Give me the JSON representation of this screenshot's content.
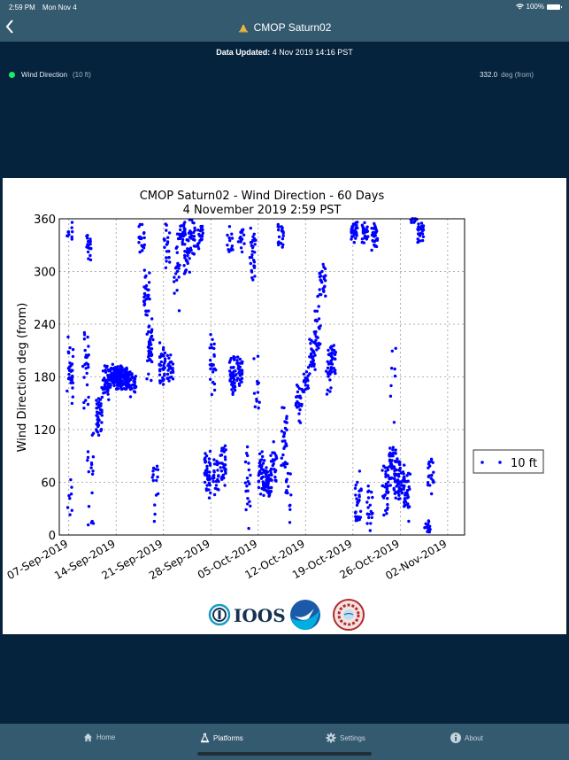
{
  "status_bar": {
    "time": "2:59 PM",
    "date": "Mon Nov 4",
    "battery": "100%"
  },
  "nav": {
    "title": "CMOP Saturn02",
    "back_icon": "chevron-left-icon",
    "title_icon": "buoy-icon"
  },
  "updated": {
    "label": "Data Updated:",
    "value": "4 Nov 2019 14:16 PST"
  },
  "sensor": {
    "name": "Wind Direction",
    "depth": "(10 ft)",
    "value": "332.0",
    "unit": "deg (from)",
    "status_color": "#1ee86a"
  },
  "tabs": [
    {
      "label": "Home",
      "icon": "home-icon",
      "active": false
    },
    {
      "label": "Platforms",
      "icon": "buoy-icon",
      "active": true
    },
    {
      "label": "Settings",
      "icon": "gear-icon",
      "active": false
    },
    {
      "label": "About",
      "icon": "info-icon",
      "active": false
    }
  ],
  "logos": [
    "IOOS",
    "NOAA",
    "CMOP"
  ],
  "chart_data": {
    "type": "scatter",
    "title": "CMOP Saturn02 - Wind Direction - 60 Days",
    "subtitle": "4 November 2019 2:59 PST",
    "xlabel": "",
    "ylabel": "Wind Direction deg (from)",
    "ylim": [
      0,
      360
    ],
    "yticks": [
      0,
      60,
      120,
      180,
      240,
      300,
      360
    ],
    "xticks": [
      "07-Sep-2019",
      "14-Sep-2019",
      "21-Sep-2019",
      "28-Sep-2019",
      "05-Oct-2019",
      "12-Oct-2019",
      "19-Oct-2019",
      "26-Oct-2019",
      "02-Nov-2019"
    ],
    "xlim_days": [
      -1.4,
      58.5
    ],
    "grid": true,
    "legend": {
      "position": "right",
      "entries": [
        "10 ft"
      ]
    },
    "marker_color": "#0000ff",
    "series": [
      {
        "name": "10 ft",
        "clusters_note": "approximate distribution: [day_offset_from_07-Sep, y_center, y_spread, n_points]",
        "clusters": [
          [
            0.2,
            190,
            60,
            30
          ],
          [
            0.2,
            340,
            20,
            10
          ],
          [
            0.3,
            40,
            40,
            8
          ],
          [
            3.0,
            330,
            20,
            20
          ],
          [
            2.5,
            190,
            60,
            25
          ],
          [
            3.2,
            80,
            60,
            14
          ],
          [
            3.2,
            10,
            10,
            4
          ],
          [
            4.5,
            140,
            30,
            40
          ],
          [
            5.5,
            175,
            25,
            35
          ],
          [
            6.5,
            180,
            15,
            60
          ],
          [
            7.5,
            180,
            15,
            70
          ],
          [
            8.5,
            178,
            15,
            60
          ],
          [
            9.5,
            175,
            20,
            30
          ],
          [
            10.8,
            340,
            20,
            20
          ],
          [
            11.5,
            270,
            40,
            30
          ],
          [
            12.0,
            210,
            40,
            40
          ],
          [
            12.8,
            60,
            50,
            15
          ],
          [
            13.8,
            195,
            30,
            35
          ],
          [
            14.5,
            330,
            30,
            20
          ],
          [
            15.0,
            190,
            20,
            25
          ],
          [
            16.0,
            300,
            50,
            20
          ],
          [
            16.8,
            345,
            15,
            30
          ],
          [
            17.5,
            320,
            30,
            30
          ],
          [
            18.3,
            340,
            25,
            25
          ],
          [
            19.5,
            340,
            15,
            25
          ],
          [
            20.5,
            70,
            30,
            40
          ],
          [
            21.3,
            190,
            40,
            25
          ],
          [
            21.7,
            65,
            35,
            25
          ],
          [
            22.8,
            80,
            30,
            30
          ],
          [
            23.8,
            330,
            25,
            15
          ],
          [
            24.2,
            180,
            25,
            45
          ],
          [
            25.2,
            185,
            20,
            30
          ],
          [
            25.5,
            340,
            20,
            15
          ],
          [
            26.5,
            60,
            60,
            20
          ],
          [
            27.2,
            320,
            40,
            30
          ],
          [
            27.8,
            170,
            40,
            12
          ],
          [
            28.5,
            70,
            30,
            40
          ],
          [
            29.5,
            60,
            20,
            50
          ],
          [
            30.3,
            80,
            30,
            25
          ],
          [
            31.3,
            340,
            20,
            20
          ],
          [
            31.8,
            110,
            40,
            30
          ],
          [
            32.5,
            50,
            40,
            15
          ],
          [
            34.0,
            150,
            30,
            25
          ],
          [
            35.0,
            175,
            20,
            25
          ],
          [
            36.0,
            205,
            30,
            30
          ],
          [
            36.8,
            240,
            40,
            25
          ],
          [
            37.5,
            290,
            20,
            25
          ],
          [
            38.5,
            190,
            40,
            25
          ],
          [
            39.0,
            200,
            20,
            30
          ],
          [
            42.2,
            345,
            15,
            35
          ],
          [
            42.8,
            40,
            40,
            30
          ],
          [
            43.8,
            345,
            15,
            30
          ],
          [
            44.5,
            30,
            30,
            20
          ],
          [
            45.2,
            340,
            20,
            30
          ],
          [
            46.8,
            55,
            40,
            35
          ],
          [
            47.8,
            80,
            30,
            35
          ],
          [
            48.5,
            60,
            30,
            35
          ],
          [
            49.2,
            60,
            30,
            30
          ],
          [
            50.0,
            45,
            40,
            30
          ],
          [
            48.0,
            170,
            100,
            10
          ],
          [
            51.0,
            360,
            8,
            10
          ],
          [
            52.0,
            345,
            15,
            25
          ],
          [
            53.0,
            10,
            10,
            15
          ],
          [
            53.5,
            65,
            30,
            20
          ]
        ]
      }
    ]
  }
}
